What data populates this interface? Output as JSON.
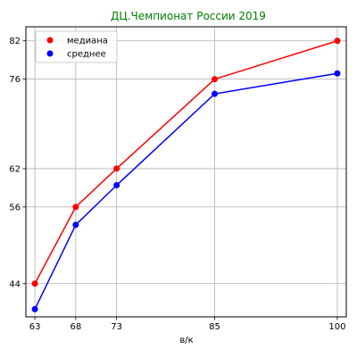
{
  "chart_data": {
    "type": "line",
    "title": "ДЦ.Чемпионат России 2019",
    "title_color": "#008000",
    "xlabel": "в/к",
    "ylabel": "",
    "x": [
      63,
      68,
      73,
      85,
      100
    ],
    "xticks": [
      63,
      68,
      73,
      85,
      100
    ],
    "yticks": [
      44,
      56,
      62,
      76,
      82
    ],
    "xlim": [
      61.9,
      101.1
    ],
    "ylim": [
      38.8,
      84.2
    ],
    "grid": true,
    "legend_position": "top-left",
    "series": [
      {
        "name": "медиана",
        "color": "#ff0000",
        "values": [
          44,
          56,
          62,
          76,
          82
        ]
      },
      {
        "name": "среднее",
        "color": "#0000ff",
        "values": [
          40,
          53.2,
          59.4,
          73.7,
          76.9
        ]
      }
    ]
  }
}
